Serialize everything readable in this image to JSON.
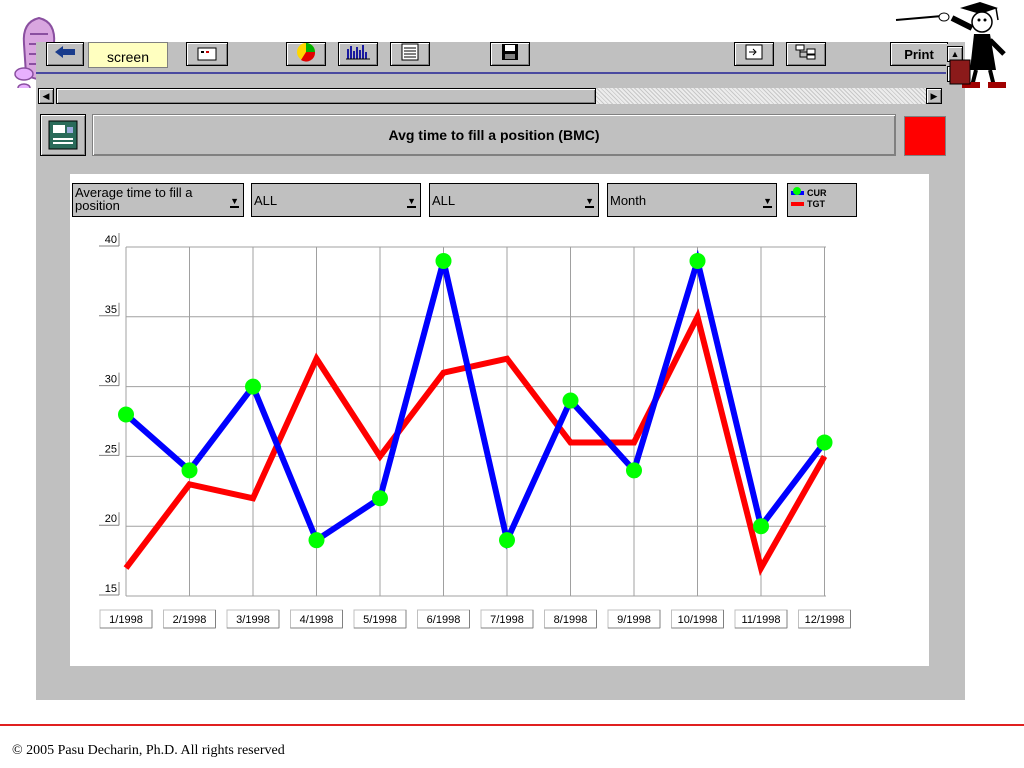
{
  "toolbar": {
    "prev_screen_label": "screen",
    "print_label": "Print"
  },
  "report": {
    "title": "Avg time to fill a position (BMC)",
    "status_color": "#ff0000"
  },
  "filters": {
    "measure": "Average time to fill a position",
    "filter_1": "ALL",
    "filter_2": "ALL",
    "period": "Month"
  },
  "legend": {
    "entries": [
      {
        "label": "CUR",
        "color": "#0000ff",
        "marker_color": "#00ff00"
      },
      {
        "label": "TGT",
        "color": "#ff0000"
      }
    ]
  },
  "chart_data": {
    "type": "line",
    "categories": [
      "1/1998",
      "2/1998",
      "3/1998",
      "4/1998",
      "5/1998",
      "6/1998",
      "7/1998",
      "8/1998",
      "9/1998",
      "10/1998",
      "11/1998",
      "12/1998"
    ],
    "series": [
      {
        "name": "CUR",
        "color": "#0000ff",
        "marker_color": "#00ff00",
        "values": [
          28,
          24,
          30,
          19,
          22,
          39,
          19,
          29,
          24,
          39,
          20,
          26
        ]
      },
      {
        "name": "TGT",
        "color": "#ff0000",
        "values": [
          17,
          23,
          22,
          32,
          25,
          31,
          32,
          26,
          26,
          35,
          17,
          25
        ]
      }
    ],
    "ylim": [
      15,
      40
    ],
    "y_ticks": [
      15,
      20,
      25,
      30,
      35,
      40
    ],
    "grid": true,
    "legend_position": "top-right"
  },
  "footer": {
    "copyright": "© 2005 Pasu Decharin, Ph.D. All rights reserved"
  },
  "icons": [
    "cabinet-logo-icon",
    "teacher-graduate-icon",
    "back-arrow-icon",
    "pie-chart-icon",
    "bar-chart-icon",
    "table-icon",
    "save-disk-icon",
    "export-icon",
    "hierarchy-icon",
    "report-icon"
  ]
}
